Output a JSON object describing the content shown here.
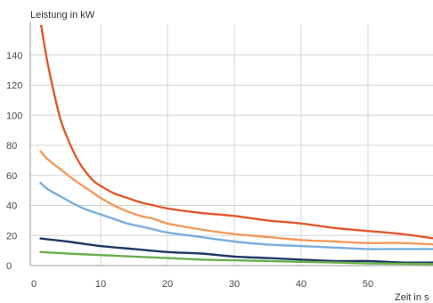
{
  "chart_data": {
    "type": "line",
    "xlabel": "Zeit in s",
    "ylabel": "Leistung in kW",
    "xlim": [
      0,
      60
    ],
    "ylim": [
      0,
      160
    ],
    "x_ticks": [
      0,
      10,
      20,
      30,
      40,
      50
    ],
    "y_ticks": [
      0,
      20,
      40,
      60,
      80,
      100,
      120,
      140
    ],
    "grid": true,
    "legend": "none",
    "series": [
      {
        "color": "#e05a2b",
        "points": [
          [
            1,
            162
          ],
          [
            2,
            136
          ],
          [
            3,
            115
          ],
          [
            4,
            97
          ],
          [
            5,
            85
          ],
          [
            6,
            75
          ],
          [
            7,
            67
          ],
          [
            8,
            61
          ],
          [
            9,
            56
          ],
          [
            10,
            53
          ],
          [
            12,
            48
          ],
          [
            14,
            45
          ],
          [
            16,
            42
          ],
          [
            18,
            40
          ],
          [
            20,
            38
          ],
          [
            25,
            35
          ],
          [
            30,
            33
          ],
          [
            35,
            30
          ],
          [
            40,
            28
          ],
          [
            45,
            25
          ],
          [
            50,
            23
          ],
          [
            55,
            21
          ],
          [
            60,
            18
          ]
        ]
      },
      {
        "color": "#f39a5c",
        "points": [
          [
            1,
            76
          ],
          [
            2,
            71
          ],
          [
            4,
            64
          ],
          [
            6,
            57
          ],
          [
            8,
            51
          ],
          [
            10,
            45
          ],
          [
            12,
            40
          ],
          [
            14,
            36
          ],
          [
            16,
            33
          ],
          [
            18,
            31
          ],
          [
            20,
            28
          ],
          [
            25,
            24
          ],
          [
            30,
            21
          ],
          [
            35,
            19
          ],
          [
            40,
            17
          ],
          [
            45,
            16
          ],
          [
            50,
            15
          ],
          [
            55,
            15
          ],
          [
            60,
            14
          ]
        ]
      },
      {
        "color": "#7aaedd",
        "points": [
          [
            1,
            55
          ],
          [
            2,
            51
          ],
          [
            4,
            46
          ],
          [
            6,
            41
          ],
          [
            8,
            37
          ],
          [
            10,
            34
          ],
          [
            12,
            31
          ],
          [
            14,
            28
          ],
          [
            16,
            26
          ],
          [
            18,
            24
          ],
          [
            20,
            22
          ],
          [
            25,
            19
          ],
          [
            30,
            16
          ],
          [
            35,
            14
          ],
          [
            40,
            13
          ],
          [
            45,
            12
          ],
          [
            50,
            11
          ],
          [
            55,
            11
          ],
          [
            60,
            11
          ]
        ]
      },
      {
        "color": "#1f3864",
        "points": [
          [
            1,
            18
          ],
          [
            5,
            16
          ],
          [
            10,
            13
          ],
          [
            15,
            11
          ],
          [
            20,
            9
          ],
          [
            25,
            8
          ],
          [
            30,
            6
          ],
          [
            35,
            5
          ],
          [
            40,
            4
          ],
          [
            45,
            3
          ],
          [
            50,
            3
          ],
          [
            55,
            2
          ],
          [
            60,
            2
          ]
        ]
      },
      {
        "color": "#6ab04c",
        "points": [
          [
            1,
            9
          ],
          [
            5,
            8
          ],
          [
            10,
            7
          ],
          [
            15,
            6
          ],
          [
            20,
            5
          ],
          [
            25,
            4
          ],
          [
            30,
            3.5
          ],
          [
            35,
            3
          ],
          [
            40,
            2.5
          ],
          [
            45,
            2
          ],
          [
            50,
            1.5
          ],
          [
            55,
            1.2
          ],
          [
            60,
            1
          ]
        ]
      }
    ]
  }
}
